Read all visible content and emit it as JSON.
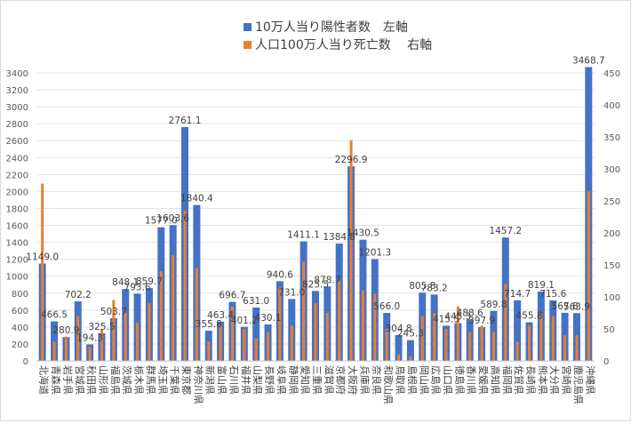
{
  "chart_data": {
    "type": "bar",
    "legend_position": "top",
    "grid": true,
    "series": [
      {
        "name": "10万人当り陽性者数　左軸",
        "axis": "left",
        "color": "#4472C4",
        "values": [
          1149.0,
          466.5,
          280.9,
          702.2,
          194.3,
          325.5,
          503.7,
          848.1,
          793.6,
          859.7,
          1577.0,
          1603.6,
          2761.1,
          1840.4,
          355.8,
          463.4,
          696.7,
          401.2,
          631.0,
          430.1,
          940.6,
          731.0,
          1411.1,
          825.5,
          878.7,
          1384.8,
          2296.9,
          1430.5,
          1201.3,
          566.0,
          304.8,
          245.3,
          805.8,
          783.2,
          415.5,
          445.3,
          488.6,
          397.9,
          589.8,
          1457.2,
          714.7,
          455.8,
          819.1,
          715.6,
          567.8,
          563.9,
          3468.7
        ]
      },
      {
        "name": "人口100万人当り死亡数　 右軸",
        "axis": "right",
        "color": "#ED7D31",
        "values": [
          277,
          30,
          38,
          70,
          22,
          50,
          95,
          75,
          60,
          90,
          140,
          165,
          235,
          145,
          30,
          55,
          85,
          50,
          35,
          45,
          115,
          55,
          155,
          90,
          75,
          125,
          345,
          110,
          105,
          50,
          10,
          7,
          70,
          75,
          50,
          85,
          45,
          55,
          45,
          120,
          30,
          55,
          75,
          70,
          40,
          40,
          265
        ]
      }
    ],
    "categories": [
      "北海道",
      "青森県",
      "岩手県",
      "宮城県",
      "秋田県",
      "山形県",
      "福島県",
      "茨城県",
      "栃木県",
      "群馬県",
      "埼玉県",
      "千葉県",
      "東京都",
      "神奈川県",
      "新潟県",
      "富山県",
      "石川県",
      "福井県",
      "山梨県",
      "長野県",
      "岐阜県",
      "静岡県",
      "愛知県",
      "三重県",
      "滋賀県",
      "京都府",
      "大阪府",
      "兵庫県",
      "奈良県",
      "和歌山県",
      "鳥取県",
      "島根県",
      "岡山県",
      "広島県",
      "山口県",
      "徳島県",
      "香川県",
      "愛媛県",
      "高知県",
      "福岡県",
      "佐賀県",
      "長崎県",
      "熊本県",
      "大分県",
      "宮崎県",
      "鹿児島県",
      "沖縄県"
    ],
    "data_labels": [
      "1149.0",
      "466.5",
      "280.9",
      "702.2",
      "194.3",
      "325.5",
      "503.7",
      "848.1",
      "793.6",
      "859.7",
      "1577.0",
      "1603.6",
      "2761.1",
      "1840.4",
      "355.8",
      "463.4",
      "696.7",
      "401.2",
      "631.0",
      "430.1",
      "940.6",
      "731.0",
      "1411.1",
      "825.5",
      "878.7",
      "1384.8",
      "2296.9",
      "1430.5",
      "1201.3",
      "566.0",
      "304.8",
      "245.3",
      "805.8",
      "783.2",
      "415.5",
      "445.3",
      "488.6",
      "397.9",
      "589.8",
      "1457.2",
      "714.7",
      "455.8",
      "819.1",
      "715.6",
      "567.8",
      "563.9",
      "3468.7"
    ],
    "y_left": {
      "min": 0,
      "max": 3400,
      "ticks": [
        "0",
        "200",
        "400",
        "600",
        "800",
        "1000",
        "1200",
        "1400",
        "1600",
        "1800",
        "2000",
        "2200",
        "2400",
        "2600",
        "2800",
        "3000",
        "3200",
        "3400"
      ]
    },
    "y_right": {
      "min": 0,
      "max": 450,
      "ticks": [
        "0",
        "50",
        "100",
        "150",
        "200",
        "250",
        "300",
        "350",
        "400",
        "450"
      ]
    }
  }
}
